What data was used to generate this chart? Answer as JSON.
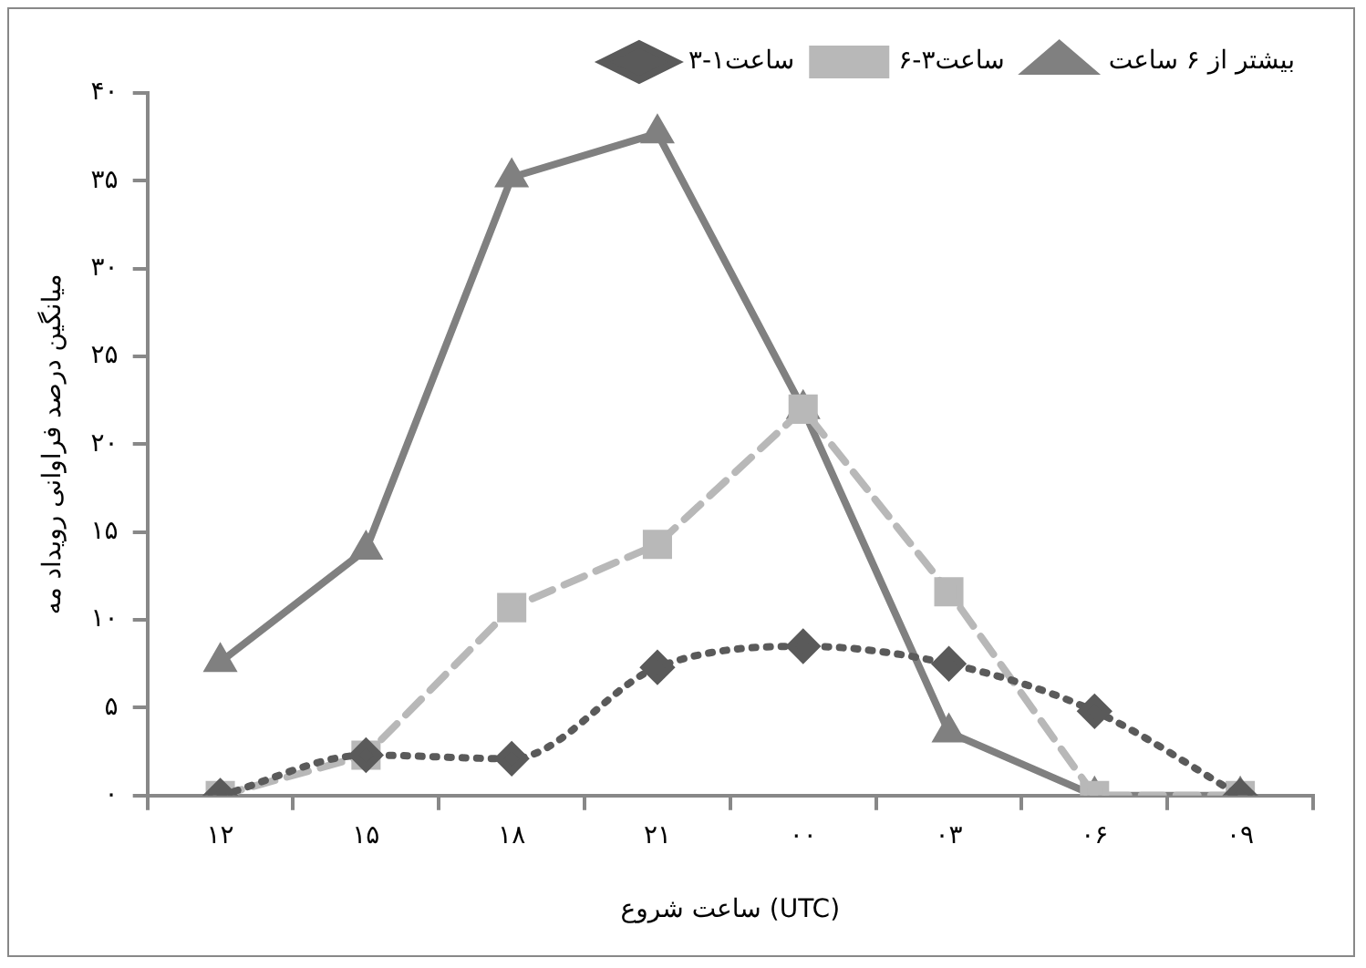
{
  "chart_data": {
    "type": "line",
    "xlabel": "ساعت شروع (UTC)",
    "ylabel": "میانگین درصد فراوانی رویداد مه",
    "categories": [
      "۱۲",
      "۱۵",
      "۱۸",
      "۲۱",
      "۰۰",
      "۰۳",
      "۰۶",
      "۰۹"
    ],
    "series": [
      {
        "name": "بیشتر از ۶ ساعت",
        "color": "#808080",
        "marker": "triangle",
        "line_style": "solid",
        "values": [
          7.6,
          14,
          35.2,
          37.7,
          22,
          3.6,
          0,
          0
        ]
      },
      {
        "name": "۶-۳ساعت",
        "color": "#b8b8b8",
        "marker": "square",
        "line_style": "dashed",
        "values": [
          0,
          2.3,
          10.7,
          14.3,
          22,
          11.6,
          0,
          0
        ]
      },
      {
        "name": "۳-۱ساعت",
        "color": "#5a5a5a",
        "marker": "diamond",
        "line_style": "dotted",
        "values": [
          0,
          2.3,
          2.1,
          7.3,
          8.5,
          7.5,
          4.8,
          0
        ]
      }
    ],
    "ylim": [
      0,
      40
    ],
    "yticks": [
      {
        "value": 0,
        "label": "۰"
      },
      {
        "value": 5,
        "label": "۵"
      },
      {
        "value": 10,
        "label": "۱۰"
      },
      {
        "value": 15,
        "label": "۱۵"
      },
      {
        "value": 20,
        "label": "۲۰"
      },
      {
        "value": 25,
        "label": "۲۵"
      },
      {
        "value": 30,
        "label": "۳۰"
      },
      {
        "value": 35,
        "label": "۳۵"
      },
      {
        "value": 40,
        "label": "۴۰"
      }
    ],
    "grid": false,
    "legend": "top right"
  }
}
